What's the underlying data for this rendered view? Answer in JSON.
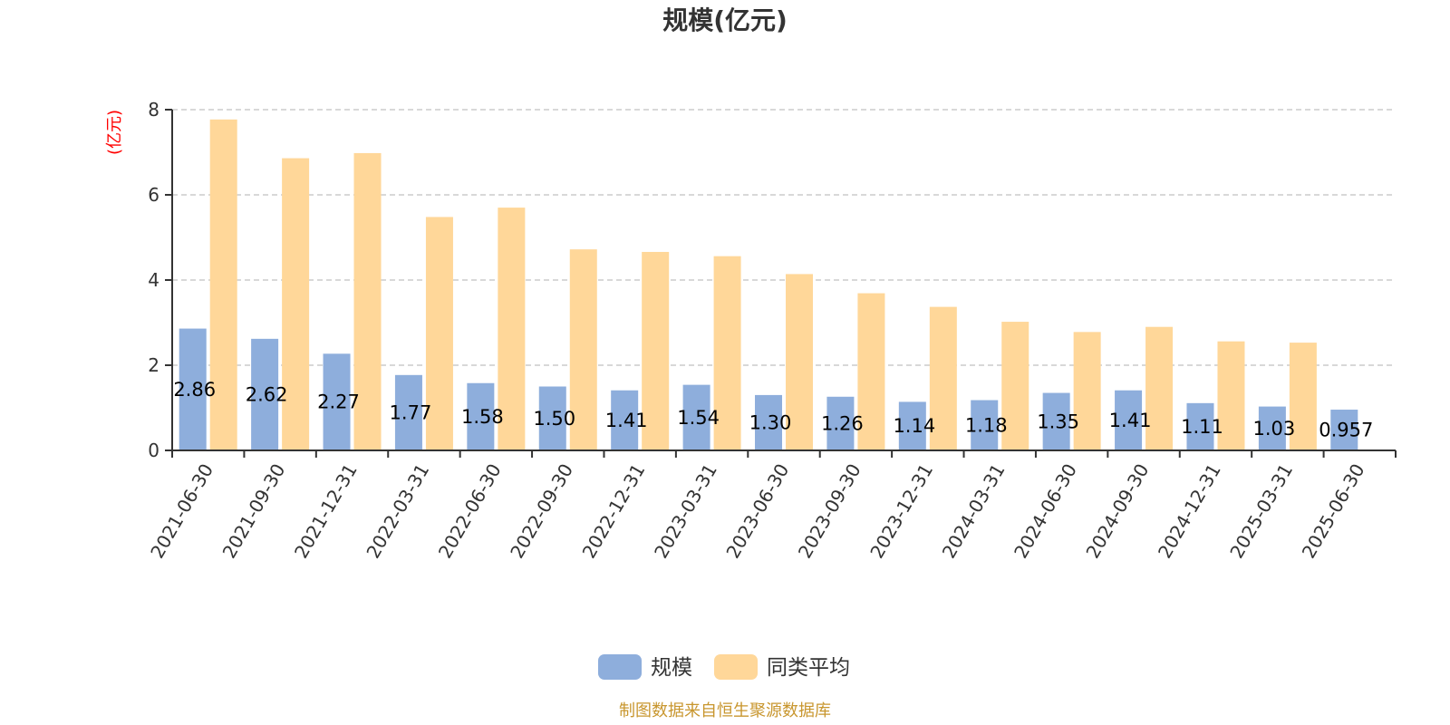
{
  "chart_data": {
    "type": "bar",
    "title": "规模(亿元)",
    "ylabel": "(亿元)",
    "xlabel": "",
    "ylim": [
      0,
      8
    ],
    "yticks": [
      0,
      2,
      4,
      6,
      8
    ],
    "grid": true,
    "legend_position": "bottom-center",
    "categories": [
      "2021-06-30",
      "2021-09-30",
      "2021-12-31",
      "2022-03-31",
      "2022-06-30",
      "2022-09-30",
      "2022-12-31",
      "2023-03-31",
      "2023-06-30",
      "2023-09-30",
      "2023-12-31",
      "2024-03-31",
      "2024-06-30",
      "2024-09-30",
      "2024-12-31",
      "2025-03-31",
      "2025-06-30"
    ],
    "series": [
      {
        "name": "规模",
        "color": "#8eaedc",
        "values": [
          2.86,
          2.62,
          2.27,
          1.77,
          1.58,
          1.5,
          1.41,
          1.54,
          1.3,
          1.26,
          1.14,
          1.18,
          1.35,
          1.41,
          1.11,
          1.03,
          0.957
        ],
        "labels": [
          "2.86",
          "2.62",
          "2.27",
          "1.77",
          "1.58",
          "1.50",
          "1.41",
          "1.54",
          "1.30",
          "1.26",
          "1.14",
          "1.18",
          "1.35",
          "1.41",
          "1.11",
          "1.03",
          "0.957"
        ]
      },
      {
        "name": "同类平均",
        "color": "#ffd799",
        "values": [
          7.77,
          6.86,
          6.98,
          5.48,
          5.7,
          4.72,
          4.66,
          4.56,
          4.14,
          3.69,
          3.37,
          3.02,
          2.78,
          2.9,
          2.56,
          2.53,
          null
        ]
      }
    ],
    "source_note": "制图数据来自恒生聚源数据库",
    "colors": {
      "unit_label": "#ff0000",
      "source_note": "#c8962e",
      "grid": "#cccccc",
      "axis": "#333333"
    }
  }
}
